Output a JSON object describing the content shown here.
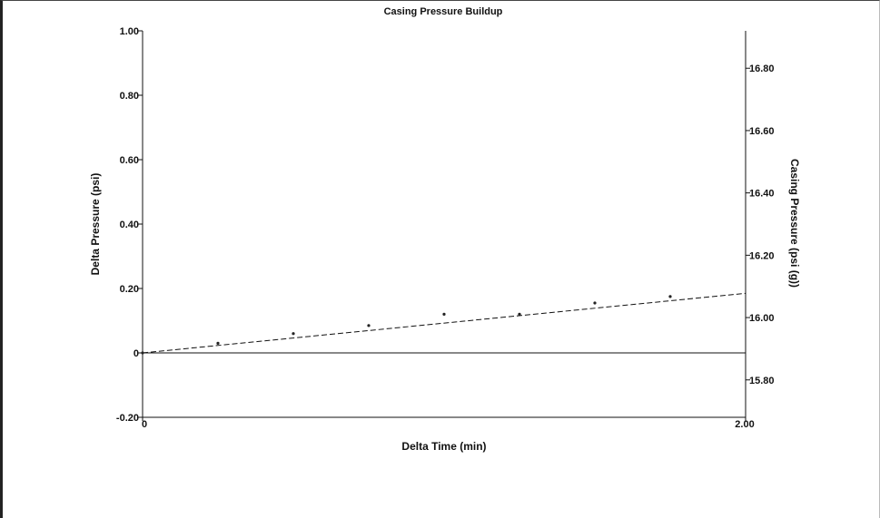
{
  "chart_data": {
    "type": "scatter",
    "title": "Casing Pressure Buildup",
    "xlabel": "Delta Time (min)",
    "ylabel_left": "Delta Pressure (psi)",
    "ylabel_right": "Casing Pressure (psi (g))",
    "xlim": [
      0,
      2.0
    ],
    "ylim_left": [
      -0.2,
      1.0
    ],
    "ylim_right": [
      15.68,
      16.92
    ],
    "x_tick_labels": [
      "0",
      "2.00"
    ],
    "x_ticks": [
      0,
      2.0
    ],
    "y_left_tick_labels": [
      "-0.20",
      "0",
      "0.20",
      "0.40",
      "0.60",
      "0.80",
      "1.00"
    ],
    "y_left_ticks": [
      -0.2,
      0,
      0.2,
      0.4,
      0.6,
      0.8,
      1.0
    ],
    "y_right_tick_labels": [
      "15.80",
      "16.00",
      "16.20",
      "16.40",
      "16.60",
      "16.80"
    ],
    "y_right_ticks": [
      15.8,
      16.0,
      16.2,
      16.4,
      16.6,
      16.8
    ],
    "series": [
      {
        "marker": "dot",
        "x": [
          0,
          0.25,
          0.5,
          0.75,
          1.0,
          1.25,
          1.5,
          1.75
        ],
        "y": [
          0,
          0.03,
          0.06,
          0.085,
          0.12,
          0.12,
          0.155,
          0.175
        ]
      }
    ],
    "trendline": {
      "style": "dashed",
      "x": [
        0,
        2.0
      ],
      "y": [
        0,
        0.185
      ]
    },
    "reference_line": {
      "y": 0,
      "style": "solid"
    },
    "grid": false,
    "legend": "none"
  }
}
